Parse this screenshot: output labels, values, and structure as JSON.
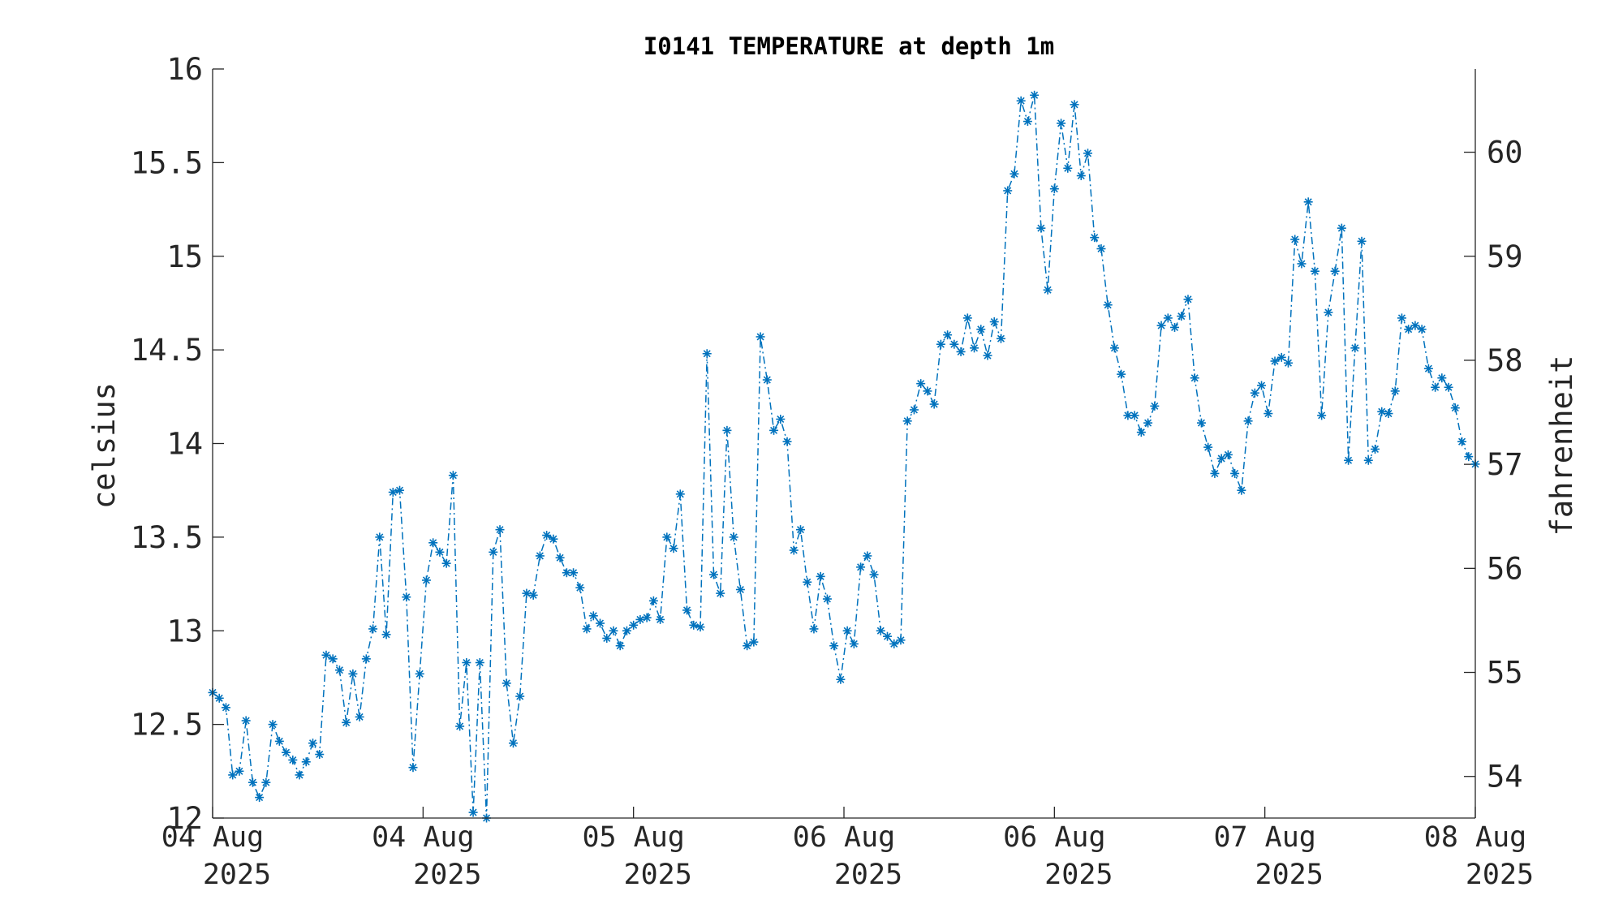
{
  "chart_data": {
    "type": "line",
    "title": "I0141 TEMPERATURE at depth 1m",
    "ylabel": "celsius",
    "y2label": "fahrenheit",
    "ylim": [
      12,
      16
    ],
    "y2lim": [
      53.6,
      60.8
    ],
    "yticks": [
      "12",
      "12.5",
      "13",
      "13.5",
      "14",
      "14.5",
      "15",
      "15.5",
      "16"
    ],
    "y2ticks": [
      "54",
      "55",
      "56",
      "57",
      "58",
      "59",
      "60"
    ],
    "xlim": [
      0,
      3
    ],
    "xticks": [
      {
        "date": "04 Aug",
        "year": "2025"
      },
      {
        "date": "04 Aug",
        "year": "2025"
      },
      {
        "date": "05 Aug",
        "year": "2025"
      },
      {
        "date": "06 Aug",
        "year": "2025"
      },
      {
        "date": "06 Aug",
        "year": "2025"
      },
      {
        "date": "07 Aug",
        "year": "2025"
      },
      {
        "date": "08 Aug",
        "year": "2025"
      }
    ],
    "grid": false,
    "legend": "none",
    "series_color": "#0072BD",
    "marker": "asterisk",
    "line_style": "dash-dot",
    "series": [
      {
        "values": [
          12.67,
          12.64,
          12.59,
          12.23,
          12.25,
          12.52,
          12.19,
          12.11,
          12.19,
          12.5,
          12.41,
          12.35,
          12.31,
          12.23,
          12.3,
          12.4,
          12.34,
          12.87,
          12.85,
          12.79,
          12.51,
          12.77,
          12.54,
          12.85,
          13.01,
          13.5,
          12.98,
          13.74,
          13.75,
          13.18,
          12.27,
          12.77,
          13.27,
          13.47,
          13.42,
          13.36,
          13.83,
          12.49,
          12.83,
          12.03,
          12.83,
          12.0,
          13.42,
          13.54,
          12.72,
          12.4,
          12.65,
          13.2,
          13.19,
          13.4,
          13.51,
          13.49,
          13.39,
          13.31,
          13.31,
          13.23,
          13.01,
          13.08,
          13.04,
          12.96,
          13.0,
          12.92,
          13.0,
          13.03,
          13.06,
          13.07,
          13.16,
          13.06,
          13.5,
          13.44,
          13.73,
          13.11,
          13.03,
          13.02,
          14.48,
          13.3,
          13.2,
          14.07,
          13.5,
          13.22,
          12.92,
          12.94,
          14.57,
          14.34,
          14.07,
          14.13,
          14.01,
          13.43,
          13.54,
          13.26,
          13.01,
          13.29,
          13.17,
          12.92,
          12.74,
          13.0,
          12.93,
          13.34,
          13.4,
          13.3,
          13.0,
          12.97,
          12.93,
          12.95,
          14.12,
          14.18,
          14.32,
          14.28,
          14.21,
          14.53,
          14.58,
          14.53,
          14.49,
          14.67,
          14.51,
          14.61,
          14.47,
          14.65,
          14.56,
          15.35,
          15.44,
          15.83,
          15.72,
          15.86,
          15.15,
          14.82,
          15.36,
          15.71,
          15.47,
          15.81,
          15.43,
          15.55,
          15.1,
          15.04,
          14.74,
          14.51,
          14.37,
          14.15,
          14.15,
          14.06,
          14.11,
          14.2,
          14.63,
          14.67,
          14.62,
          14.68,
          14.77,
          14.35,
          14.11,
          13.98,
          13.84,
          13.92,
          13.94,
          13.84,
          13.75,
          14.12,
          14.27,
          14.31,
          14.16,
          14.44,
          14.46,
          14.43,
          15.09,
          14.96,
          15.29,
          14.92,
          14.15,
          14.7,
          14.92,
          15.15,
          13.91,
          14.51,
          15.08,
          13.91,
          13.97,
          14.17,
          14.16,
          14.28,
          14.67,
          14.61,
          14.63,
          14.61,
          14.4,
          14.3,
          14.35,
          14.3,
          14.19,
          14.01,
          13.93,
          13.89
        ]
      }
    ]
  }
}
